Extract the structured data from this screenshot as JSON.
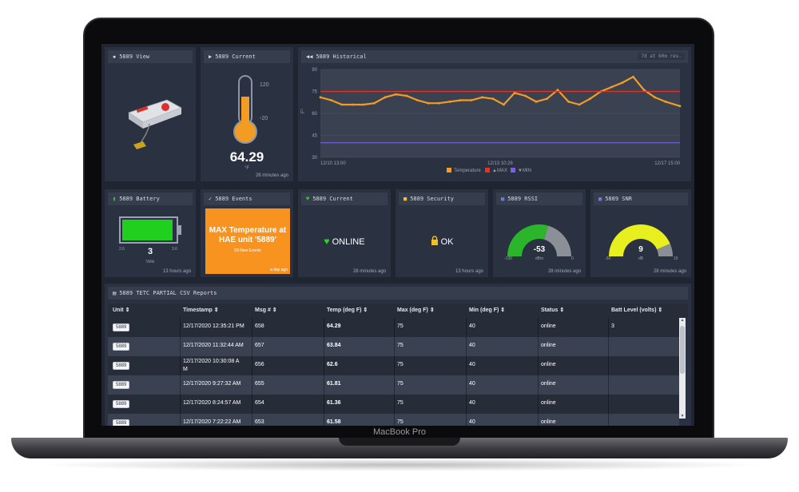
{
  "device_label": "MacBook Pro",
  "view_panel": {
    "title": "5889 View"
  },
  "current_temp_panel": {
    "title": "5889 Current",
    "scale": [
      "120",
      "-20"
    ],
    "value": "64.29",
    "unit": "°F",
    "ago": "28 minutes ago"
  },
  "historical_panel": {
    "title": "5889 Historical",
    "badge": "7d at 60m res."
  },
  "chart_data": {
    "type": "line",
    "ylabel": "F°",
    "ylim": [
      30,
      90
    ],
    "yticks": [
      "90",
      "75",
      "60",
      "45",
      "30"
    ],
    "xticks": [
      "12/10 13:00",
      "12/13 10:26",
      "12/17 15:00"
    ],
    "series": [
      {
        "name": "Temperature",
        "color": "#f39c24",
        "x": [
          0,
          3,
          6,
          9,
          12,
          15,
          18,
          21,
          24,
          27,
          30,
          33,
          36,
          39,
          42,
          45,
          48,
          51,
          54,
          57,
          60,
          63,
          66,
          69,
          72,
          75,
          78,
          81,
          84,
          87,
          90,
          93,
          96,
          100
        ],
        "values": [
          71,
          69,
          66,
          66,
          66,
          67,
          71,
          73,
          72,
          69,
          67,
          67,
          68,
          69,
          69,
          71,
          70,
          66,
          74,
          72,
          68,
          70,
          76,
          68,
          66,
          70,
          75,
          78,
          81,
          85,
          76,
          71,
          68,
          65
        ]
      },
      {
        "name": "▲MAX",
        "color": "#e0342a",
        "x": [
          0,
          100
        ],
        "values": [
          75,
          75
        ]
      },
      {
        "name": "▼MIN",
        "color": "#7b5fe0",
        "x": [
          0,
          100
        ],
        "values": [
          40,
          40
        ]
      }
    ],
    "legend": [
      "Temperature",
      "▲MAX",
      "▼MIN"
    ]
  },
  "battery_panel": {
    "title": "5889 Battery",
    "min": "2.6",
    "max": "3.6",
    "value": "3",
    "unit": "Volts",
    "level": 0.95,
    "ago": "13 hours ago"
  },
  "events_panel": {
    "title": "5889 Events",
    "headline": "MAX Temperature at HAE unit '5889'",
    "sub": "59 New Events",
    "ago": "a day ago"
  },
  "status_panel": {
    "title": "5889 Current",
    "status": "ONLINE",
    "ago": "28 minutes ago"
  },
  "security_panel": {
    "title": "5889 Security",
    "status": "OK",
    "ago": "13 hours ago"
  },
  "rssi_panel": {
    "title": "5889 RSSI",
    "value": "-53",
    "unit": "dBm",
    "min": "-130",
    "max": "0",
    "fraction": 0.59,
    "color": "#2bb52b",
    "ago": "28 minutes ago"
  },
  "snr_panel": {
    "title": "5889 SNR",
    "value": "9",
    "unit": "dB",
    "min": "-30",
    "max": "15",
    "fraction": 0.87,
    "color": "#e8ef1f",
    "ago": "28 minutes ago"
  },
  "reports_panel": {
    "title": "5889 TETC PARTIAL CSV Reports",
    "columns": [
      "Unit",
      "Timestamp",
      "Msg #",
      "Temp (deg F)",
      "Max (deg F)",
      "Min (deg F)",
      "Status",
      "Batt Level (volts)"
    ],
    "rows": [
      {
        "unit": "5889",
        "ts": "12/17/2020 12:35:21 PM",
        "msg": "658",
        "temp": "64.29",
        "max": "75",
        "min": "40",
        "status": "online",
        "batt": "3"
      },
      {
        "unit": "5889",
        "ts": "12/17/2020 11:32:44 AM",
        "msg": "657",
        "temp": "63.84",
        "max": "75",
        "min": "40",
        "status": "online",
        "batt": ""
      },
      {
        "unit": "5889",
        "ts": "12/17/2020 10:30:08 A",
        "ts2": "M",
        "msg": "656",
        "temp": "62.6",
        "max": "75",
        "min": "40",
        "status": "online",
        "batt": ""
      },
      {
        "unit": "5889",
        "ts": "12/17/2020 9:27:32 AM",
        "msg": "655",
        "temp": "61.81",
        "max": "75",
        "min": "40",
        "status": "online",
        "batt": ""
      },
      {
        "unit": "5889",
        "ts": "12/17/2020 8:24:57 AM",
        "msg": "654",
        "temp": "61.36",
        "max": "75",
        "min": "40",
        "status": "online",
        "batt": ""
      },
      {
        "unit": "5889",
        "ts": "12/17/2020 7:22:22 AM",
        "msg": "653",
        "temp": "61.58",
        "max": "75",
        "min": "40",
        "status": "online",
        "batt": ""
      }
    ]
  }
}
